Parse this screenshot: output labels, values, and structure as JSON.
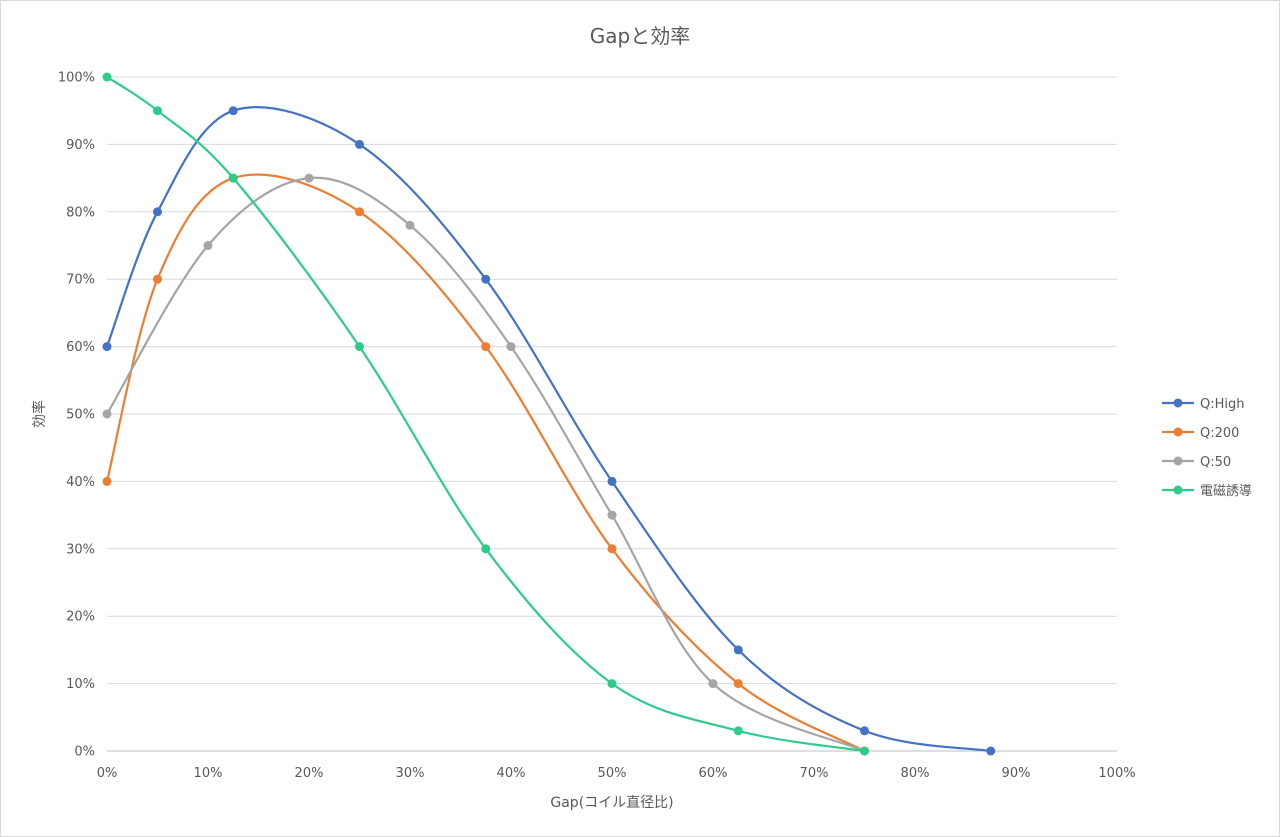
{
  "chart_data": {
    "type": "line",
    "title": "Gapと効率",
    "xlabel": "Gap(コイル直径比)",
    "ylabel": "効率",
    "xlim": [
      0,
      100
    ],
    "ylim": [
      0,
      100
    ],
    "x_ticks": [
      "0%",
      "10%",
      "20%",
      "30%",
      "40%",
      "50%",
      "60%",
      "70%",
      "80%",
      "90%",
      "100%"
    ],
    "y_ticks": [
      "0%",
      "10%",
      "20%",
      "30%",
      "40%",
      "50%",
      "60%",
      "70%",
      "80%",
      "90%",
      "100%"
    ],
    "grid": "horizontal",
    "legend_position": "right",
    "smooth": true,
    "series": [
      {
        "name": "Q:High",
        "color": "#4472C4",
        "points": [
          [
            0,
            60
          ],
          [
            5,
            80
          ],
          [
            12.5,
            95
          ],
          [
            25,
            90
          ],
          [
            37.5,
            70
          ],
          [
            50,
            40
          ],
          [
            62.5,
            15
          ],
          [
            75,
            3
          ],
          [
            87.5,
            0
          ]
        ]
      },
      {
        "name": "Q:200",
        "color": "#ED7D31",
        "points": [
          [
            0,
            40
          ],
          [
            5,
            70
          ],
          [
            12.5,
            85
          ],
          [
            25,
            80
          ],
          [
            37.5,
            60
          ],
          [
            50,
            30
          ],
          [
            62.5,
            10
          ],
          [
            75,
            0
          ]
        ]
      },
      {
        "name": "Q:50",
        "color": "#A5A5A5",
        "points": [
          [
            0,
            50
          ],
          [
            10,
            75
          ],
          [
            20,
            85
          ],
          [
            30,
            78
          ],
          [
            40,
            60
          ],
          [
            50,
            35
          ],
          [
            60,
            10
          ],
          [
            75,
            0
          ]
        ]
      },
      {
        "name": "電磁誘導",
        "color": "#2ECC8A",
        "points": [
          [
            0,
            100
          ],
          [
            5,
            95
          ],
          [
            12.5,
            85
          ],
          [
            25,
            60
          ],
          [
            37.5,
            30
          ],
          [
            50,
            10
          ],
          [
            62.5,
            3
          ],
          [
            75,
            0
          ]
        ]
      }
    ]
  }
}
